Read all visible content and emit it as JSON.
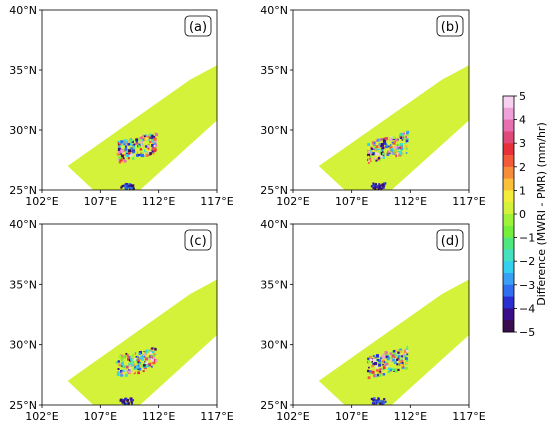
{
  "chart_data": {
    "type": "heatmap",
    "panels": [
      {
        "label": "(a)"
      },
      {
        "label": "(b)"
      },
      {
        "label": "(c)"
      },
      {
        "label": "(d)"
      }
    ],
    "x_ticks": [
      "102°E",
      "107°E",
      "112°E",
      "117°E"
    ],
    "y_ticks": [
      "25°N",
      "30°N",
      "35°N",
      "40°N"
    ],
    "xlim_deg": [
      102,
      117
    ],
    "ylim_deg": [
      25,
      40
    ],
    "swath_value": 0,
    "colorbar": {
      "label": "Difference (MWRI - PMR) (mm/hr)",
      "ticks": [
        "5",
        "4",
        "3",
        "2",
        "1",
        "0",
        "−1",
        "−2",
        "−3",
        "−4",
        "−5"
      ],
      "range": [
        -5,
        5
      ],
      "colors": [
        "#3b0f4f",
        "#3a0e8a",
        "#2a2fd0",
        "#2f6ff0",
        "#3aa0f5",
        "#35d0f0",
        "#45e0c0",
        "#4fe87e",
        "#74ef3c",
        "#9ef23a",
        "#d4f23a",
        "#f4ec3a",
        "#fac03a",
        "#f78c3a",
        "#f25a3a",
        "#e8303a",
        "#e04a7a",
        "#e870b0",
        "#f0a0d8",
        "#f8d0f0"
      ]
    }
  }
}
